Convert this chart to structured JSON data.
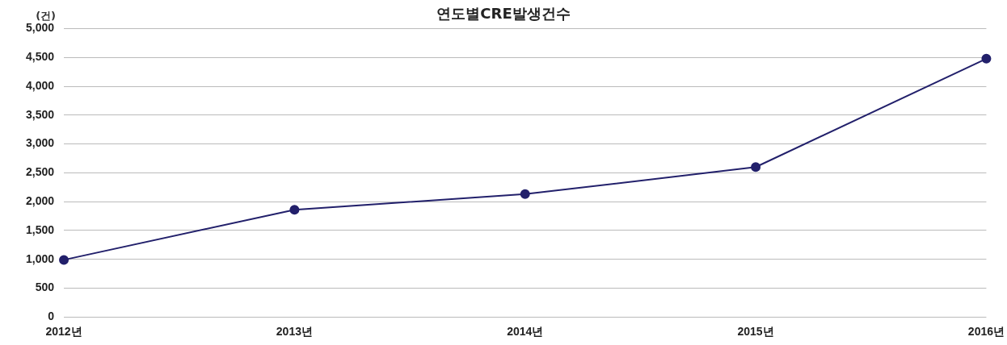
{
  "chart_data": {
    "type": "line",
    "title": "연도별CRE발생건수",
    "ylabel": "(건)",
    "categories": [
      "2012년",
      "2013년",
      "2014년",
      "2015년",
      "2016년"
    ],
    "series": [
      {
        "color": "#22206b",
        "values": [
          990,
          1860,
          2130,
          2600,
          4480
        ]
      }
    ],
    "ylim": [
      0,
      5000
    ],
    "yticks": [
      {
        "value": 0,
        "label": "0"
      },
      {
        "value": 500,
        "label": "500"
      },
      {
        "value": 1000,
        "label": "1,000"
      },
      {
        "value": 1500,
        "label": "1,500"
      },
      {
        "value": 2000,
        "label": "2,000"
      },
      {
        "value": 2500,
        "label": "2,500"
      },
      {
        "value": 3000,
        "label": "3,000"
      },
      {
        "value": 3500,
        "label": "3,500"
      },
      {
        "value": 4000,
        "label": "4,000"
      },
      {
        "value": 4500,
        "label": "4,500"
      },
      {
        "value": 5000,
        "label": "5,000"
      }
    ],
    "grid": "y",
    "legend": false,
    "marker": "circle",
    "line_style": "solid"
  }
}
